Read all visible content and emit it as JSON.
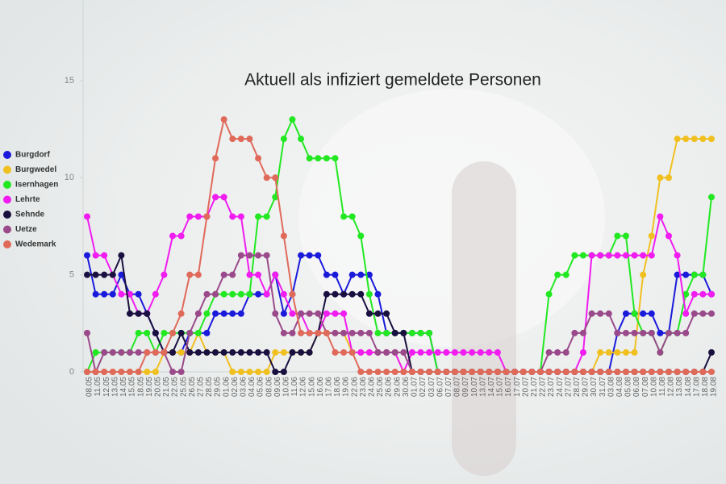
{
  "chart_data": {
    "type": "line",
    "title": "Aktuell als infiziert gemeldete Personen",
    "categories": [
      "08.05",
      "11.05",
      "12.05",
      "13.05",
      "14.05",
      "15.05",
      "18.05",
      "19.05",
      "20.05",
      "21.05",
      "22.05",
      "25.05",
      "26.05",
      "27.05",
      "28.05",
      "29.05",
      "01.06",
      "02.06",
      "03.06",
      "04.06",
      "05.06",
      "08.06",
      "09.06",
      "10.06",
      "11.06",
      "12.06",
      "15.06",
      "16.06",
      "17.06",
      "18.06",
      "19.06",
      "22.06",
      "23.06",
      "24.06",
      "25.06",
      "26.06",
      "29.06",
      "30.06",
      "01.07",
      "02.07",
      "03.07",
      "06.07",
      "07.07",
      "08.07",
      "09.07",
      "10.07",
      "13.07",
      "14.07",
      "15.07",
      "16.07",
      "17.07",
      "20.07",
      "21.07",
      "22.07",
      "23.07",
      "24.07",
      "27.07",
      "28.07",
      "29.07",
      "30.07",
      "31.07",
      "03.08",
      "04.08",
      "05.08",
      "06.08",
      "07.08",
      "10.08",
      "11.08",
      "12.08",
      "13.08",
      "14.08",
      "17.08",
      "18.08",
      "19.08"
    ],
    "ylim": [
      0,
      18
    ],
    "yticks": [
      0,
      5,
      10,
      15
    ],
    "legend": "left",
    "series": [
      {
        "name": "Burgdorf",
        "color": "#1a1adb",
        "values": [
          6,
          4,
          4,
          4,
          5,
          4,
          4,
          3,
          2,
          1,
          1,
          1,
          2,
          2,
          2,
          3,
          3,
          3,
          3,
          4,
          4,
          4,
          5,
          3,
          4,
          6,
          6,
          6,
          5,
          5,
          4,
          5,
          5,
          5,
          4,
          2,
          2,
          2,
          2,
          2,
          2,
          0,
          0,
          0,
          0,
          0,
          0,
          0,
          0,
          0,
          0,
          0,
          0,
          0,
          0,
          0,
          0,
          0,
          0,
          0,
          0,
          0,
          2,
          3,
          3,
          3,
          3,
          2,
          2,
          5,
          5,
          5,
          5,
          4
        ]
      },
      {
        "name": "Burgwedel",
        "color": "#f0c020",
        "values": [
          0,
          0,
          0,
          0,
          0,
          0,
          0,
          0,
          0,
          1,
          1,
          1,
          1,
          2,
          1,
          1,
          1,
          0,
          0,
          0,
          0,
          0,
          1,
          1,
          1,
          1,
          1,
          2,
          2,
          2,
          2,
          1,
          1,
          1,
          1,
          1,
          1,
          0,
          0,
          0,
          0,
          0,
          0,
          0,
          0,
          0,
          0,
          0,
          0,
          0,
          0,
          0,
          0,
          0,
          0,
          0,
          0,
          0,
          0,
          0,
          1,
          1,
          1,
          1,
          1,
          5,
          7,
          10,
          10,
          12,
          12,
          12,
          12,
          12
        ]
      },
      {
        "name": "Isernhagen",
        "color": "#22e822",
        "values": [
          0,
          1,
          1,
          1,
          1,
          1,
          2,
          2,
          1,
          2,
          2,
          2,
          2,
          2,
          3,
          4,
          4,
          4,
          4,
          4,
          8,
          8,
          9,
          12,
          13,
          12,
          11,
          11,
          11,
          11,
          8,
          8,
          7,
          4,
          2,
          2,
          2,
          2,
          2,
          2,
          2,
          0,
          0,
          0,
          0,
          0,
          0,
          0,
          0,
          0,
          0,
          0,
          0,
          0,
          4,
          5,
          5,
          6,
          6,
          6,
          6,
          6,
          7,
          7,
          3,
          2,
          2,
          1,
          2,
          2,
          4,
          5,
          5,
          9
        ]
      },
      {
        "name": "Lehrte",
        "color": "#f01cf0",
        "values": [
          8,
          6,
          6,
          5,
          4,
          4,
          3,
          3,
          4,
          5,
          7,
          7,
          8,
          8,
          8,
          9,
          9,
          8,
          8,
          5,
          5,
          4,
          5,
          4,
          3,
          3,
          2,
          2,
          3,
          3,
          3,
          1,
          1,
          1,
          1,
          1,
          1,
          0,
          1,
          1,
          1,
          1,
          1,
          1,
          1,
          1,
          1,
          1,
          1,
          0,
          0,
          0,
          0,
          0,
          0,
          0,
          0,
          0,
          1,
          6,
          6,
          6,
          6,
          6,
          6,
          6,
          6,
          8,
          7,
          6,
          3,
          4,
          4,
          4
        ]
      },
      {
        "name": "Sehnde",
        "color": "#1a1040",
        "values": [
          5,
          5,
          5,
          5,
          6,
          3,
          3,
          3,
          2,
          1,
          1,
          2,
          1,
          1,
          1,
          1,
          1,
          1,
          1,
          1,
          1,
          1,
          0,
          0,
          1,
          1,
          1,
          2,
          4,
          4,
          4,
          4,
          4,
          3,
          3,
          3,
          2,
          2,
          0,
          0,
          0,
          0,
          0,
          0,
          0,
          0,
          0,
          0,
          0,
          0,
          0,
          0,
          0,
          0,
          0,
          0,
          0,
          0,
          0,
          0,
          0,
          0,
          0,
          0,
          0,
          0,
          0,
          0,
          0,
          0,
          0,
          0,
          0,
          1
        ]
      },
      {
        "name": "Uetze",
        "color": "#9a4a8a",
        "values": [
          2,
          0,
          1,
          1,
          1,
          1,
          1,
          1,
          1,
          1,
          0,
          0,
          2,
          3,
          4,
          4,
          5,
          5,
          6,
          6,
          6,
          6,
          3,
          2,
          2,
          3,
          3,
          3,
          2,
          2,
          2,
          2,
          2,
          2,
          1,
          1,
          1,
          1,
          0,
          0,
          0,
          0,
          0,
          0,
          0,
          0,
          0,
          0,
          0,
          0,
          0,
          0,
          0,
          0,
          1,
          1,
          1,
          2,
          2,
          3,
          3,
          3,
          2,
          2,
          2,
          2,
          2,
          1,
          2,
          2,
          2,
          3,
          3,
          3
        ]
      },
      {
        "name": "Wedemark",
        "color": "#e06a5a",
        "values": [
          0,
          0,
          0,
          0,
          0,
          0,
          0,
          1,
          1,
          1,
          2,
          3,
          5,
          5,
          8,
          11,
          13,
          12,
          12,
          12,
          11,
          10,
          10,
          7,
          4,
          2,
          2,
          2,
          2,
          1,
          1,
          1,
          0,
          0,
          0,
          0,
          0,
          0,
          0,
          0,
          0,
          0,
          0,
          0,
          0,
          0,
          0,
          0,
          0,
          0,
          0,
          0,
          0,
          0,
          0,
          0,
          0,
          0,
          0,
          0,
          0,
          0,
          0,
          0,
          0,
          0,
          0,
          0,
          0,
          0,
          0,
          0,
          0,
          0
        ]
      }
    ]
  }
}
